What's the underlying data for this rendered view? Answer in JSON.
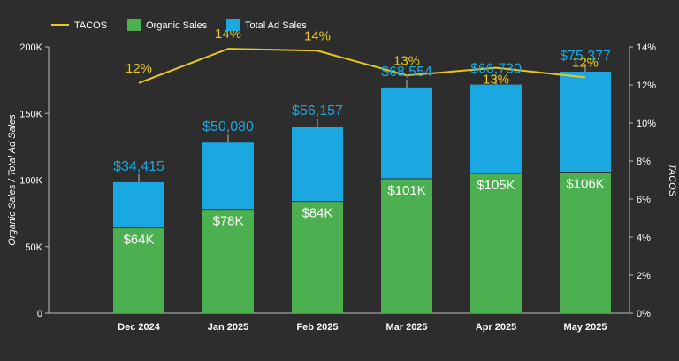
{
  "chart_data": {
    "type": "bar",
    "stacked": true,
    "categories": [
      "Dec 2024",
      "Jan 2025",
      "Feb 2025",
      "Mar 2025",
      "Apr 2025",
      "May 2025"
    ],
    "series": [
      {
        "name": "Organic Sales",
        "color": "#4caf50",
        "values": [
          64000,
          78000,
          84000,
          101000,
          105000,
          106000
        ],
        "labels": [
          "$64K",
          "$78K",
          "$84K",
          "$101K",
          "$105K",
          "$106K"
        ]
      },
      {
        "name": "Total Ad Sales",
        "color": "#1ba8e0",
        "values": [
          34415,
          50080,
          56157,
          68554,
          66730,
          75377
        ],
        "labels": [
          "$34,415",
          "$50,080",
          "$56,157",
          "$68,554",
          "$66,730",
          "$75,377"
        ]
      }
    ],
    "line_series": {
      "name": "TACOS",
      "color": "#e8c81e",
      "values": [
        12,
        14,
        14,
        13,
        13,
        12
      ],
      "labels": [
        "12%",
        "14%",
        "14%",
        "13%",
        "13%",
        "12%"
      ],
      "line_values": [
        12.1,
        13.9,
        13.8,
        12.5,
        12.9,
        12.4
      ]
    },
    "ylabel": "Organic Sales / Total Ad Sales",
    "y2label": "TACOS",
    "ylim": [
      0,
      200000
    ],
    "yticks": [
      0,
      50000,
      100000,
      150000,
      200000
    ],
    "ytick_labels": [
      "0",
      "50K",
      "100K",
      "150K",
      "200K"
    ],
    "y2lim": [
      0,
      14
    ],
    "y2ticks": [
      0,
      2,
      4,
      6,
      8,
      10,
      12,
      14
    ],
    "y2tick_labels": [
      "0%",
      "2%",
      "4%",
      "6%",
      "8%",
      "10%",
      "12%",
      "14%"
    ],
    "legend_position": "top-left",
    "grid": false
  },
  "colors": {
    "background": "#2d2d2d",
    "text": "#ffffff",
    "organic": "#4caf50",
    "ad": "#1ba8e0",
    "tacos": "#e8c81e"
  }
}
